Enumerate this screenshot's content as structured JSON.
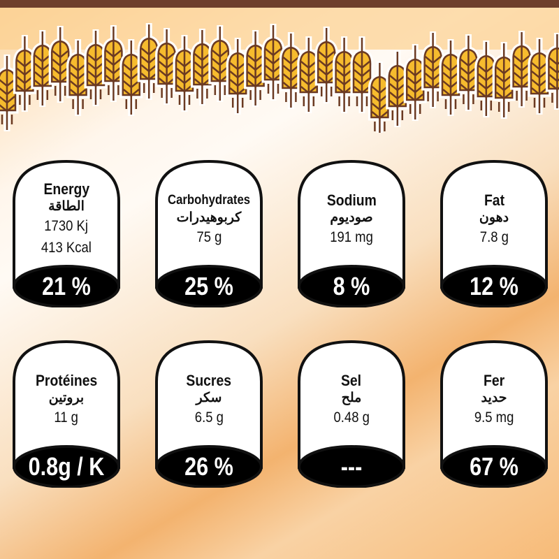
{
  "colors": {
    "top_bar": "#6e3f2c",
    "wheat_fill": "#f6bb2e",
    "wheat_stroke": "#6b3a22",
    "card_bottom": "#000000"
  },
  "decoration": {
    "icon": "wheat-icon"
  },
  "cards": [
    {
      "title": "Energy",
      "arabic": "الطاقة",
      "values": [
        "1730 Kj",
        "413 Kcal"
      ],
      "percent": "21 %"
    },
    {
      "title": "Carbohydrates",
      "arabic": "كربوهيدرات",
      "values": [
        "75 g"
      ],
      "percent": "25 %"
    },
    {
      "title": "Sodium",
      "arabic": "صوديوم",
      "values": [
        "191 mg"
      ],
      "percent": "8 %"
    },
    {
      "title": "Fat",
      "arabic": "دهون",
      "values": [
        "7.8 g"
      ],
      "percent": "12 %"
    },
    {
      "title": "Protéines",
      "arabic": "بروتين",
      "values": [
        "11 g"
      ],
      "percent": "0.8g / K"
    },
    {
      "title": "Sucres",
      "arabic": "سكر",
      "values": [
        "6.5 g"
      ],
      "percent": "26 %"
    },
    {
      "title": "Sel",
      "arabic": "ملح",
      "values": [
        "0.48 g"
      ],
      "percent": "---"
    },
    {
      "title": "Fer",
      "arabic": "حديد",
      "values": [
        "9.5 mg"
      ],
      "percent": "67 %"
    }
  ]
}
